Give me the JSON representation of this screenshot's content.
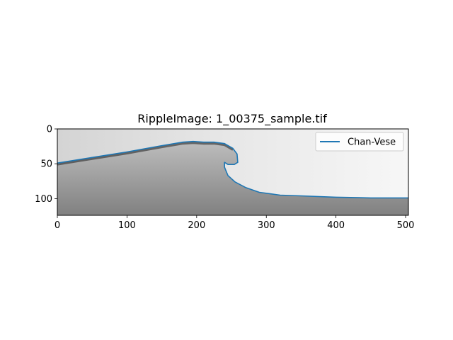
{
  "chart_data": {
    "type": "line",
    "title": "RippleImage: 1_00375_sample.tif",
    "xlim": [
      0,
      504
    ],
    "ylim": [
      124,
      0
    ],
    "y_inverted": true,
    "x_ticks": [
      0,
      100,
      200,
      300,
      400,
      500
    ],
    "y_ticks": [
      0,
      50,
      100
    ],
    "background": "grayscale-image",
    "legend": {
      "placement": "upper-right",
      "entries": [
        "Chan-Vese"
      ]
    },
    "series": [
      {
        "name": "Chan-Vese",
        "color": "#1f77b4",
        "x": [
          0,
          50,
          100,
          150,
          180,
          195,
          210,
          225,
          240,
          252,
          258,
          259,
          254,
          245,
          240,
          240,
          245,
          255,
          270,
          290,
          320,
          350,
          400,
          450,
          504
        ],
        "y": [
          49,
          41,
          33,
          24,
          19,
          18,
          19,
          19,
          21,
          28,
          36,
          48,
          51,
          51,
          48,
          55,
          67,
          76,
          84,
          91,
          95,
          96,
          98,
          99,
          99
        ]
      }
    ]
  }
}
